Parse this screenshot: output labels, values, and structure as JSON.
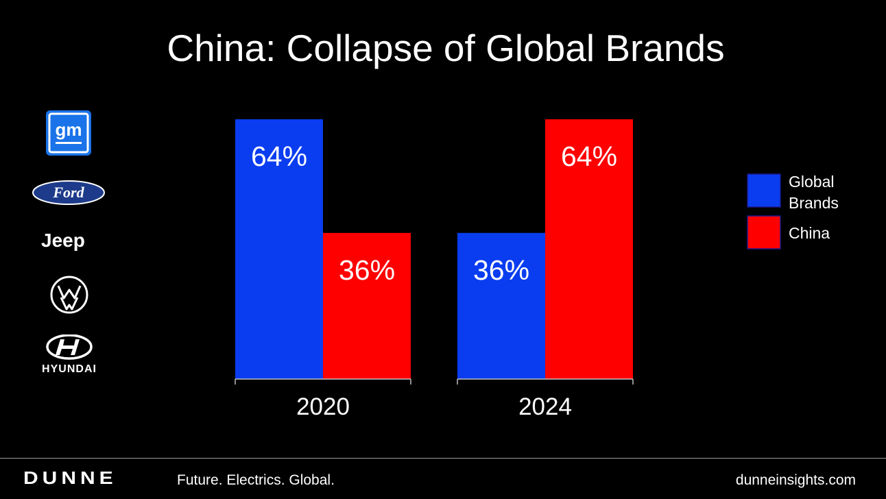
{
  "chart_data": {
    "type": "bar",
    "title": "China: Collapse of Global Brands",
    "categories": [
      "2020",
      "2024"
    ],
    "series": [
      {
        "name": "Global Brands",
        "color": "#0a3df0",
        "values": [
          64,
          36
        ]
      },
      {
        "name": "China",
        "color": "#ff0000",
        "values": [
          36,
          64
        ]
      }
    ],
    "data_labels": [
      [
        "64%",
        "36%"
      ],
      [
        "36%",
        "64%"
      ]
    ],
    "xlabel": "",
    "ylabel": "",
    "ylim": [
      0,
      64
    ],
    "grid": false,
    "legend": "right"
  },
  "logos": {
    "gm": "gm",
    "ford": "Ford",
    "jeep": "Jeep",
    "hyundai": "HYUNDAI"
  },
  "footer": {
    "brand": "DUNNE",
    "tagline": "Future. Electrics. Global.",
    "url": "dunneinsights.com"
  }
}
